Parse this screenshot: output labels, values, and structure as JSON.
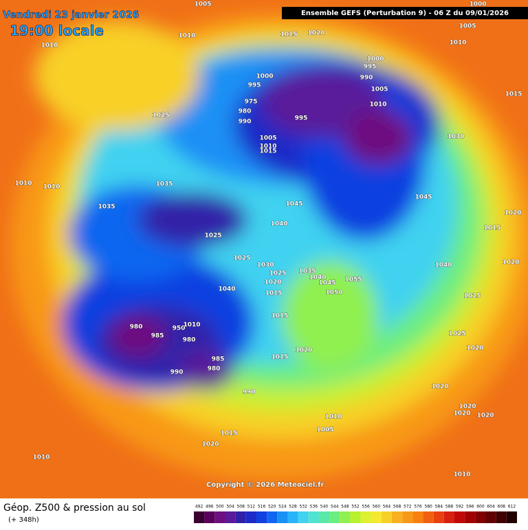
{
  "header": {
    "date": "Vendredi 23 janvier 2026",
    "time": "19:00 locale",
    "model": "Ensemble GEFS  (Perturbation 9)  -  06 Z du 09/01/2026",
    "copyright": "Copyright © 2026 Meteociel.fr"
  },
  "footer": {
    "title": "Géop. Z500 & pression au sol",
    "lead": "(+ 348h)"
  },
  "legend": {
    "values": [
      492,
      496,
      500,
      504,
      508,
      512,
      516,
      520,
      524,
      528,
      532,
      536,
      540,
      544,
      548,
      552,
      556,
      560,
      564,
      568,
      572,
      576,
      580,
      584,
      588,
      592,
      596,
      600,
      604,
      608,
      612
    ],
    "colors": [
      "#3a0030",
      "#58005a",
      "#6e0f80",
      "#5a1a9a",
      "#3020a8",
      "#1c2ac8",
      "#1040e0",
      "#1066f0",
      "#1a90f5",
      "#28b4f8",
      "#40d2f0",
      "#50e4d0",
      "#5ae8a8",
      "#6ced80",
      "#90f050",
      "#b8f030",
      "#def030",
      "#f5e830",
      "#f8d028",
      "#f8b020",
      "#f89818",
      "#f88010",
      "#f06010",
      "#e84010",
      "#d82010",
      "#c00808",
      "#a00000",
      "#800000",
      "#600000",
      "#400000",
      "#200000"
    ]
  },
  "pressure_labels": [
    1005,
    1010,
    1010,
    1015,
    1020,
    1000,
    1005,
    1010,
    1015,
    1000,
    995,
    990,
    1005,
    1010,
    1000,
    995,
    975,
    980,
    990,
    995,
    1005,
    1010,
    1015,
    1025,
    1030,
    1010,
    1010,
    1035,
    1035,
    1045,
    1040,
    1025,
    1045,
    1015,
    1020,
    1020,
    1040,
    1025,
    1030,
    1025,
    1020,
    1015,
    1035,
    1040,
    1045,
    1055,
    1050,
    1025,
    1040,
    1015,
    1025,
    1020,
    1020,
    1015,
    980,
    985,
    950,
    1010,
    980,
    985,
    980,
    990,
    990,
    1020,
    1020,
    1020,
    1020,
    1010,
    1005,
    1015,
    1020,
    1010,
    1010
  ]
}
